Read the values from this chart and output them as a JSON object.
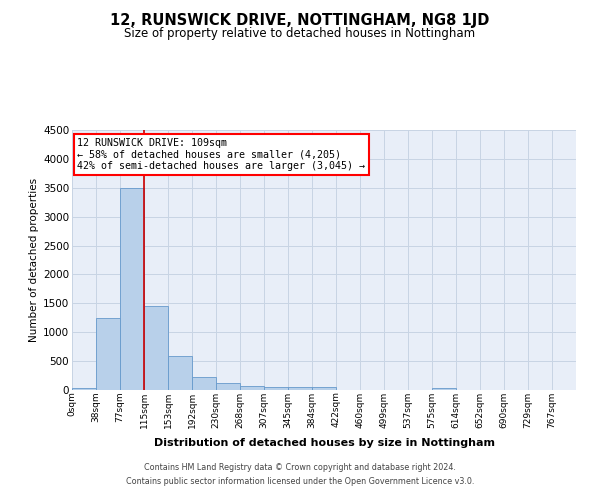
{
  "title": "12, RUNSWICK DRIVE, NOTTINGHAM, NG8 1JD",
  "subtitle": "Size of property relative to detached houses in Nottingham",
  "xlabel": "Distribution of detached houses by size in Nottingham",
  "ylabel": "Number of detached properties",
  "footer_line1": "Contains HM Land Registry data © Crown copyright and database right 2024.",
  "footer_line2": "Contains public sector information licensed under the Open Government Licence v3.0.",
  "bin_labels": [
    "0sqm",
    "38sqm",
    "77sqm",
    "115sqm",
    "153sqm",
    "192sqm",
    "230sqm",
    "268sqm",
    "307sqm",
    "345sqm",
    "384sqm",
    "422sqm",
    "460sqm",
    "499sqm",
    "537sqm",
    "575sqm",
    "614sqm",
    "652sqm",
    "690sqm",
    "729sqm",
    "767sqm"
  ],
  "bar_values": [
    30,
    1250,
    3500,
    1450,
    580,
    230,
    120,
    75,
    50,
    50,
    55,
    0,
    0,
    0,
    0,
    30,
    0,
    0,
    0,
    0,
    0
  ],
  "bar_color": "#b8d0ea",
  "bar_edge_color": "#6699cc",
  "annotation_line1": "12 RUNSWICK DRIVE: 109sqm",
  "annotation_line2": "← 58% of detached houses are smaller (4,205)",
  "annotation_line3": "42% of semi-detached houses are larger (3,045) →",
  "ylim": [
    0,
    4500
  ],
  "yticks": [
    0,
    500,
    1000,
    1500,
    2000,
    2500,
    3000,
    3500,
    4000,
    4500
  ],
  "grid_color": "#c8d4e4",
  "background_color": "#e8eef8",
  "red_line_color": "#cc0000",
  "title_fontsize": 10.5,
  "subtitle_fontsize": 8.5
}
